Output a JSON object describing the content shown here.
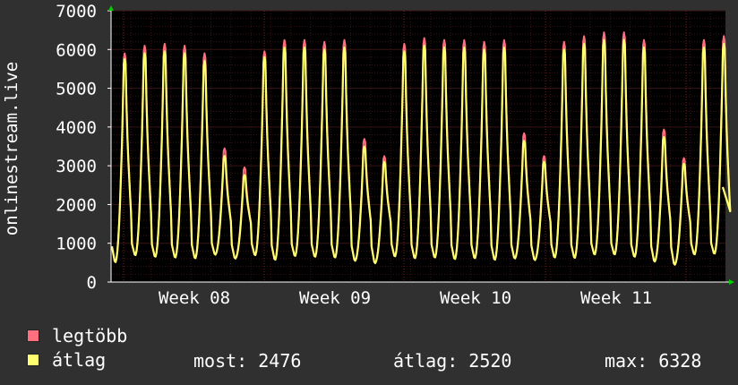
{
  "chart_data": {
    "type": "line",
    "ylabel": "onlinestream.live",
    "ylim": [
      0,
      7000
    ],
    "yticks": [
      0,
      1000,
      2000,
      3000,
      4000,
      5000,
      6000,
      7000
    ],
    "xticks": [
      "Week 08",
      "Week 09",
      "Week 10",
      "Week 11"
    ],
    "grid": true,
    "series": [
      {
        "name": "legtöbb",
        "color": "#ff6f7f",
        "daily_peaks": [
          6000,
          6200,
          6250,
          6200,
          6000,
          3500,
          3000,
          6050,
          6350,
          6350,
          6300,
          6350,
          3750,
          3300,
          6250,
          6400,
          6350,
          6350,
          6300,
          6350,
          3900,
          3300,
          6300,
          6450,
          6550,
          6550,
          6350,
          4000,
          3250,
          6350,
          6450
        ],
        "daily_troughs": [
          500,
          680,
          640,
          620,
          600,
          700,
          600,
          680,
          560,
          660,
          640,
          620,
          540,
          480,
          650,
          600,
          620,
          580,
          600,
          560,
          600,
          560,
          620,
          610,
          700,
          700,
          640,
          520,
          440,
          700,
          720
        ]
      },
      {
        "name": "átlag",
        "color": "#ffff70",
        "daily_peaks": [
          5850,
          6000,
          6050,
          6000,
          5800,
          3300,
          2800,
          5900,
          6150,
          6150,
          6100,
          6150,
          3550,
          3150,
          6050,
          6200,
          6150,
          6150,
          6100,
          6150,
          3700,
          3150,
          6100,
          6250,
          6350,
          6350,
          6150,
          3800,
          3100,
          6150,
          6250
        ],
        "daily_troughs": [
          500,
          680,
          640,
          620,
          600,
          700,
          600,
          680,
          560,
          660,
          640,
          620,
          540,
          480,
          650,
          600,
          620,
          580,
          600,
          560,
          600,
          560,
          620,
          610,
          700,
          700,
          640,
          520,
          440,
          700,
          720
        ]
      }
    ],
    "last_value": 2450
  },
  "legend": {
    "max_label": "legtöbb",
    "avg_label": "átlag"
  },
  "stats": {
    "now": "most: 2476",
    "avg": "átlag: 2520",
    "max": "max: 6328"
  },
  "colors": {
    "background": "#303030",
    "plot_bg": "#000000",
    "grid": "#5a1a1a",
    "axis": "#ffffff",
    "arrow": "#00cc00"
  }
}
